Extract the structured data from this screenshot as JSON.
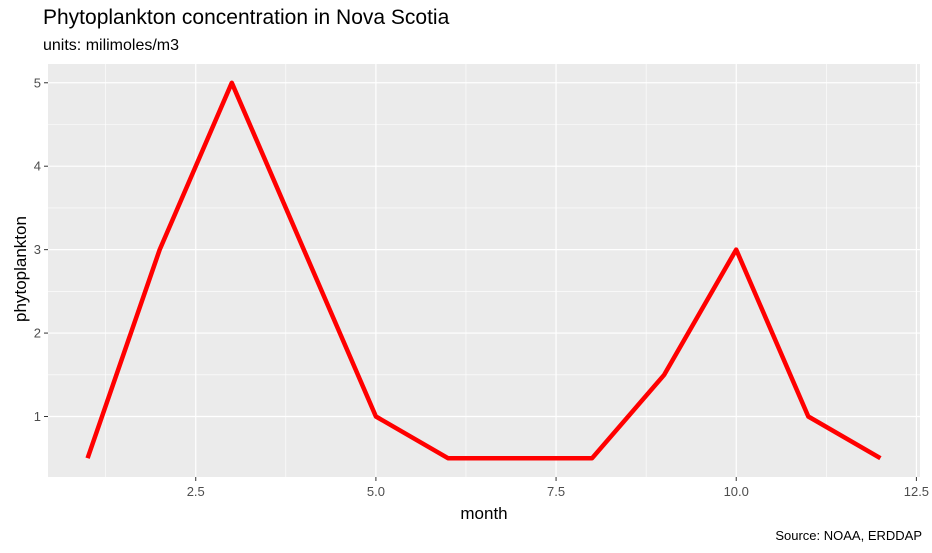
{
  "chart_data": {
    "type": "line",
    "title": "Phytoplankton concentration in Nova Scotia",
    "subtitle": "units: milimoles/m3",
    "caption": "Source: NOAA, ERDDAP",
    "xlabel": "month",
    "ylabel": "phytoplankton",
    "x": [
      1,
      2,
      3,
      4,
      5,
      6,
      7,
      8,
      9,
      10,
      11,
      12
    ],
    "series": [
      {
        "values": [
          0.5,
          3.0,
          5.0,
          3.0,
          1.0,
          0.5,
          0.5,
          0.5,
          1.5,
          3.0,
          1.0,
          0.5
        ]
      }
    ],
    "xlim": [
      0.45,
      12.55
    ],
    "ylim": [
      0.275,
      5.225
    ],
    "x_ticks": [
      2.5,
      5.0,
      7.5,
      10.0,
      12.5
    ],
    "x_tick_labels": [
      "2.5",
      "5.0",
      "7.5",
      "10.0",
      "12.5"
    ],
    "y_ticks": [
      1,
      2,
      3,
      4,
      5
    ],
    "y_tick_labels": [
      "1",
      "2",
      "3",
      "4",
      "5"
    ],
    "grid": true,
    "line_color": "#ff0000",
    "panel_color": "#ebebeb",
    "grid_color": "#ffffff"
  }
}
